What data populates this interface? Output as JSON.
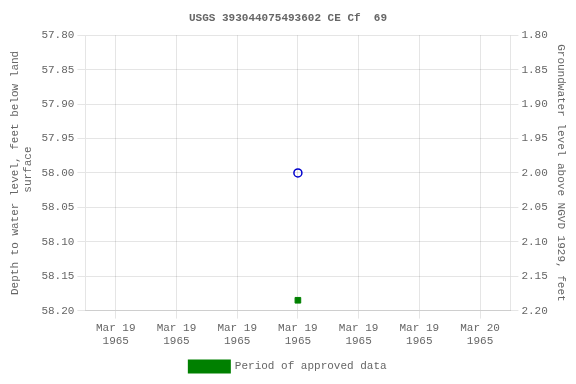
{
  "chart_data": {
    "type": "scatter",
    "title": "USGS 393044075493602 CE Cf  69",
    "y_label": "Depth to water level, feet below land\n surface",
    "y2_label": "Groundwater level above NGVD 1929, feet",
    "categories": [
      "Mar 19\n1965",
      "Mar 19\n1965",
      "Mar 19\n1965",
      "Mar 19\n1965",
      "Mar 19\n1965",
      "Mar 19\n1965",
      "Mar 20\n1965"
    ],
    "series": [
      {
        "color": "#0000cc",
        "marker": "circle",
        "values": [
          null,
          null,
          null,
          58.0,
          null,
          null,
          null
        ]
      },
      {
        "name": "Period of approved data",
        "color": "#008000",
        "marker": "square",
        "values": [
          null,
          null,
          null,
          58.185,
          null,
          null,
          null
        ]
      }
    ],
    "ylim": [
      58.2,
      57.8
    ],
    "yticks": [
      {
        "value": 57.8,
        "label": "57.80"
      },
      {
        "value": 57.85,
        "label": "57.85"
      },
      {
        "value": 57.9,
        "label": "57.90"
      },
      {
        "value": 57.95,
        "label": "57.95"
      },
      {
        "value": 58.0,
        "label": "58.00"
      },
      {
        "value": 58.05,
        "label": "58.05"
      },
      {
        "value": 58.1,
        "label": "58.10"
      },
      {
        "value": 58.15,
        "label": "58.15"
      },
      {
        "value": 58.2,
        "label": "58.20"
      }
    ],
    "y2lim": [
      2.2,
      1.8
    ],
    "y2ticks": [
      {
        "value": 2.2,
        "label": "2.20"
      },
      {
        "value": 2.15,
        "label": "2.15"
      },
      {
        "value": 2.1,
        "label": "2.10"
      },
      {
        "value": 2.05,
        "label": "2.05"
      },
      {
        "value": 2.0,
        "label": "2.00"
      },
      {
        "value": 1.95,
        "label": "1.95"
      },
      {
        "value": 1.9,
        "label": "1.90"
      },
      {
        "value": 1.85,
        "label": "1.85"
      },
      {
        "value": 1.8,
        "label": "1.80"
      }
    ],
    "grid": true,
    "legend": "bottom"
  }
}
